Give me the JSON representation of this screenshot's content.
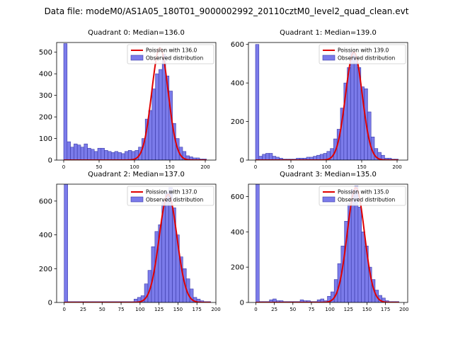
{
  "suptitle": "Data file: modeM0/AS1A05_180T01_9000002992_20110cztM0_level2_quad_clean.evt",
  "colors": {
    "bar_fill": "#7b7bea",
    "bar_edge": "#3a3aa8",
    "fit_line": "#e00000",
    "axis": "#000000"
  },
  "chart_data": [
    {
      "type": "bar",
      "title": "Quadrant 0: Median=136.0",
      "legend_location": "top-right",
      "legend": [
        "Poission with 136.0",
        "Observed distribution"
      ],
      "xlim": [
        -10,
        215
      ],
      "ylim": [
        0,
        545
      ],
      "xticks": [
        0,
        50,
        100,
        150,
        200
      ],
      "yticks": [
        0,
        100,
        200,
        300,
        400,
        500
      ],
      "bin_width": 4.8,
      "bin_starts": [
        0,
        4.8,
        9.6,
        14.4,
        19.2,
        24,
        28.8,
        33.6,
        38.4,
        43.2,
        48,
        52.8,
        57.6,
        62.4,
        67.2,
        72,
        76.8,
        81.6,
        86.4,
        91.2,
        96,
        100.8,
        105.6,
        110.4,
        115.2,
        120,
        124.8,
        129.6,
        134.4,
        139.2,
        144,
        148.8,
        153.6,
        158.4,
        163.2,
        168,
        172.8,
        177.6,
        182.4,
        187.2,
        192,
        196.8
      ],
      "counts": [
        540,
        85,
        60,
        75,
        70,
        60,
        75,
        55,
        50,
        40,
        55,
        55,
        45,
        40,
        35,
        40,
        35,
        30,
        40,
        45,
        40,
        45,
        60,
        100,
        190,
        230,
        330,
        400,
        420,
        490,
        390,
        320,
        170,
        100,
        60,
        40,
        20,
        15,
        10,
        10,
        5,
        5
      ],
      "fit_mean": 136.0,
      "fit_peak": 520
    },
    {
      "type": "bar",
      "title": "Quadrant 1: Median=139.0",
      "legend_location": "top-right",
      "legend": [
        "Poission with 139.0",
        "Observed distribution"
      ],
      "xlim": [
        -10,
        215
      ],
      "ylim": [
        0,
        610
      ],
      "xticks": [
        0,
        50,
        100,
        150,
        200
      ],
      "yticks": [
        0,
        200,
        400,
        600
      ],
      "bin_width": 4.8,
      "bin_starts": [
        0,
        4.8,
        9.6,
        14.4,
        19.2,
        24,
        28.8,
        33.6,
        38.4,
        43.2,
        48,
        52.8,
        57.6,
        62.4,
        67.2,
        72,
        76.8,
        81.6,
        86.4,
        91.2,
        96,
        100.8,
        105.6,
        110.4,
        115.2,
        120,
        124.8,
        129.6,
        134.4,
        139.2,
        144,
        148.8,
        153.6,
        158.4,
        163.2,
        168,
        172.8,
        177.6,
        182.4,
        187.2,
        192,
        196.8
      ],
      "counts": [
        600,
        20,
        30,
        35,
        35,
        20,
        15,
        10,
        5,
        5,
        5,
        5,
        10,
        10,
        10,
        15,
        15,
        20,
        25,
        30,
        35,
        45,
        60,
        110,
        160,
        270,
        400,
        480,
        560,
        540,
        480,
        380,
        370,
        250,
        120,
        60,
        40,
        25,
        10,
        10,
        5,
        5
      ],
      "fit_mean": 139.0,
      "fit_peak": 560
    },
    {
      "type": "bar",
      "title": "Quadrant 2: Median=137.0",
      "legend_location": "top-right",
      "legend": [
        "Poission with 137.0",
        "Observed distribution"
      ],
      "xlim": [
        -10,
        200
      ],
      "ylim": [
        0,
        700
      ],
      "xticks": [
        0,
        25,
        50,
        75,
        100,
        125,
        150,
        175,
        200
      ],
      "yticks": [
        0,
        200,
        400,
        600
      ],
      "bin_width": 4.6,
      "bin_starts": [
        0,
        4.6,
        9.2,
        13.8,
        18.4,
        23,
        27.6,
        32.2,
        36.8,
        41.4,
        46,
        50.6,
        55.2,
        59.8,
        64.4,
        69,
        73.6,
        78.2,
        82.8,
        87.4,
        92,
        96.6,
        101.2,
        105.8,
        110.4,
        115,
        119.6,
        124.2,
        128.8,
        133.4,
        138,
        142.6,
        147.2,
        151.8,
        156.4,
        161,
        165.6,
        170.2,
        174.8,
        179.4,
        184,
        188.6
      ],
      "counts": [
        700,
        5,
        5,
        5,
        5,
        5,
        5,
        5,
        5,
        5,
        5,
        5,
        5,
        5,
        5,
        5,
        5,
        5,
        5,
        5,
        20,
        30,
        40,
        110,
        190,
        330,
        420,
        460,
        600,
        650,
        680,
        560,
        400,
        270,
        200,
        140,
        80,
        30,
        20,
        10,
        5,
        5
      ],
      "fit_mean": 137.0,
      "fit_peak": 640
    },
    {
      "type": "bar",
      "title": "Quadrant 3: Median=135.0",
      "legend_location": "top-right",
      "legend": [
        "Poission with 135.0",
        "Observed distribution"
      ],
      "xlim": [
        -10,
        205
      ],
      "ylim": [
        0,
        670
      ],
      "xticks": [
        0,
        25,
        50,
        75,
        100,
        125,
        150,
        175,
        200
      ],
      "yticks": [
        0,
        200,
        400,
        600
      ],
      "bin_width": 4.6,
      "bin_starts": [
        0,
        4.6,
        9.2,
        13.8,
        18.4,
        23,
        27.6,
        32.2,
        36.8,
        41.4,
        46,
        50.6,
        55.2,
        59.8,
        64.4,
        69,
        73.6,
        78.2,
        82.8,
        87.4,
        92,
        96.6,
        101.2,
        105.8,
        110.4,
        115,
        119.6,
        124.2,
        128.8,
        133.4,
        138,
        142.6,
        147.2,
        151.8,
        156.4,
        161,
        165.6,
        170.2,
        174.8,
        179.4,
        184,
        188.6
      ],
      "counts": [
        670,
        5,
        5,
        5,
        15,
        20,
        10,
        10,
        5,
        5,
        5,
        5,
        5,
        15,
        10,
        10,
        5,
        5,
        15,
        20,
        10,
        35,
        60,
        130,
        220,
        320,
        460,
        560,
        640,
        660,
        540,
        400,
        320,
        200,
        130,
        70,
        40,
        25,
        10,
        5,
        5,
        5
      ],
      "fit_mean": 135.0,
      "fit_peak": 650
    }
  ]
}
